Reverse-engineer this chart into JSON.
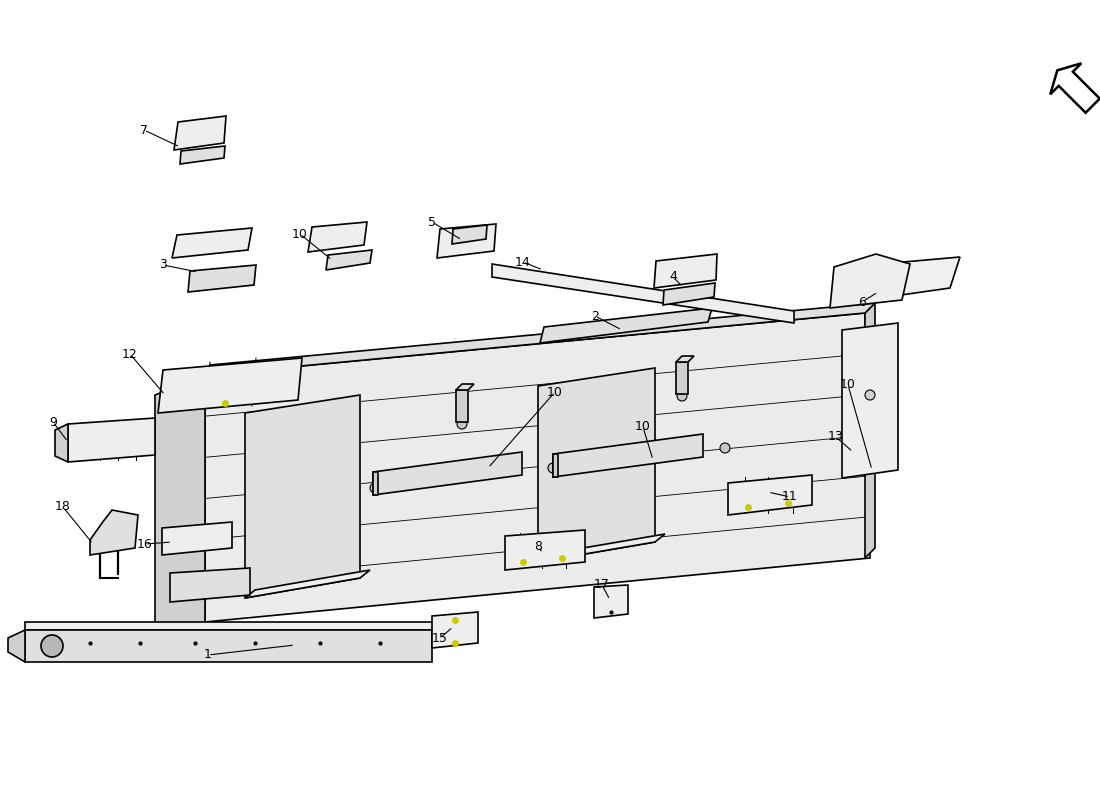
{
  "background_color": "#ffffff",
  "line_color": "#000000",
  "line_width": 1.2,
  "fill_light": "#eeeeee",
  "fill_medium": "#e0e0e0",
  "fill_dark": "#d0d0d0",
  "yellow": "#cccc00",
  "watermark_color": "#e8e8e8",
  "watermark_yellow": "#d4c840"
}
